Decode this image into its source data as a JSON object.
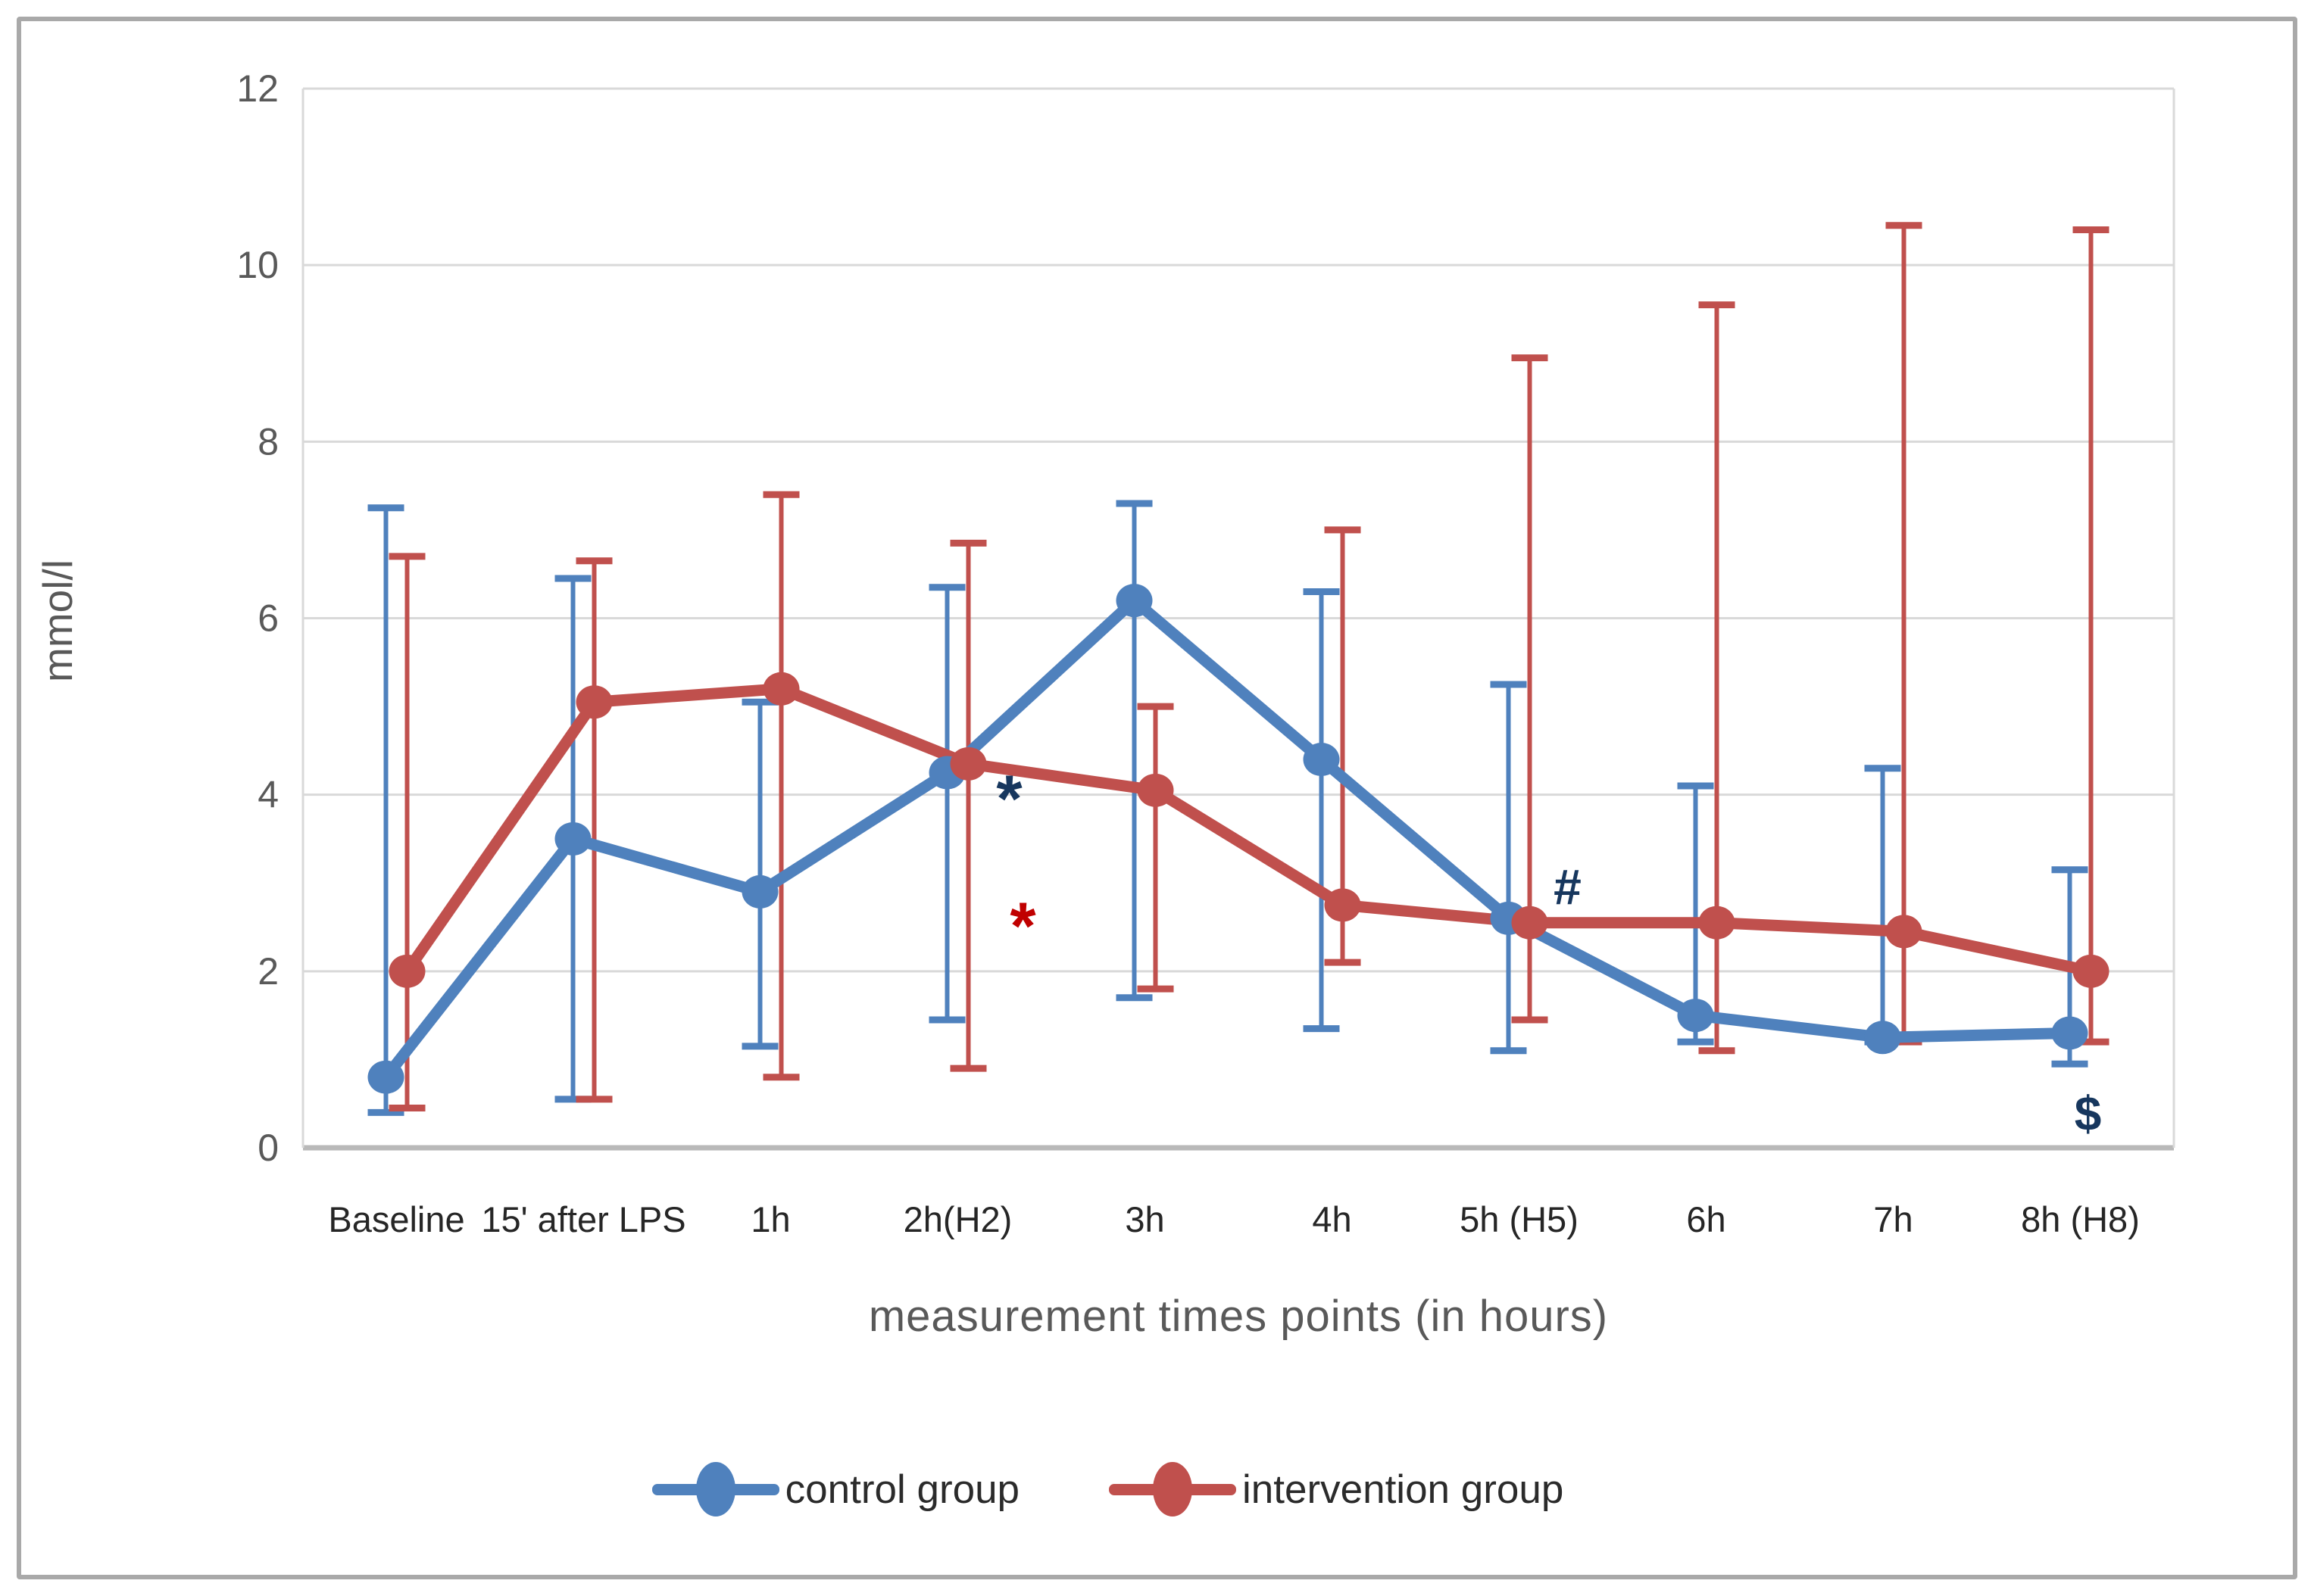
{
  "chart_data": {
    "type": "line",
    "title": "",
    "xlabel": "measurement times points (in hours)",
    "ylabel": "mmol/l",
    "ylim": [
      0,
      12
    ],
    "yticks": [
      0,
      2,
      4,
      6,
      8,
      10,
      12
    ],
    "grid": "horizontal",
    "legend_position": "bottom",
    "categories": [
      "Baseline",
      "15' after LPS",
      "1h",
      "2h(H2)",
      "3h",
      "4h",
      "5h (H5)",
      "6h",
      "7h",
      "8h (H8)"
    ],
    "series": [
      {
        "name": "control group",
        "color": "#4f81bd",
        "values": [
          0.8,
          3.5,
          2.9,
          4.25,
          6.2,
          4.4,
          2.6,
          1.5,
          1.25,
          1.3
        ],
        "err_top": [
          7.25,
          6.45,
          5.05,
          6.35,
          7.3,
          6.3,
          5.25,
          4.1,
          4.3,
          3.15
        ],
        "err_bot": [
          0.4,
          0.55,
          1.15,
          1.45,
          1.7,
          1.35,
          1.1,
          1.2,
          1.2,
          0.95
        ]
      },
      {
        "name": "intervention group",
        "color": "#c0504d",
        "values": [
          2.0,
          5.05,
          5.2,
          4.35,
          4.05,
          2.75,
          2.55,
          2.55,
          2.45,
          2.0
        ],
        "err_top": [
          6.7,
          6.65,
          7.4,
          6.85,
          5.0,
          7.0,
          8.95,
          9.55,
          10.45,
          10.4
        ],
        "err_bot": [
          0.45,
          0.55,
          0.8,
          0.9,
          1.8,
          2.1,
          1.45,
          1.1,
          1.2,
          1.2
        ]
      }
    ],
    "annotations": [
      {
        "symbol": "*",
        "color": "#17375e",
        "category_index": 3,
        "value": 4.06,
        "dx": 68,
        "font_size": 88
      },
      {
        "symbol": "*",
        "color": "#c00000",
        "category_index": 3,
        "value": 2.62,
        "dx": 86,
        "font_size": 88
      },
      {
        "symbol": "#",
        "color": "#17375e",
        "category_index": 6,
        "value": 2.95,
        "dx": 64,
        "font_size": 66
      },
      {
        "symbol": "$",
        "color": "#17375e",
        "category_index": 9,
        "value": 0.4,
        "dx": 10,
        "font_size": 64
      }
    ]
  }
}
